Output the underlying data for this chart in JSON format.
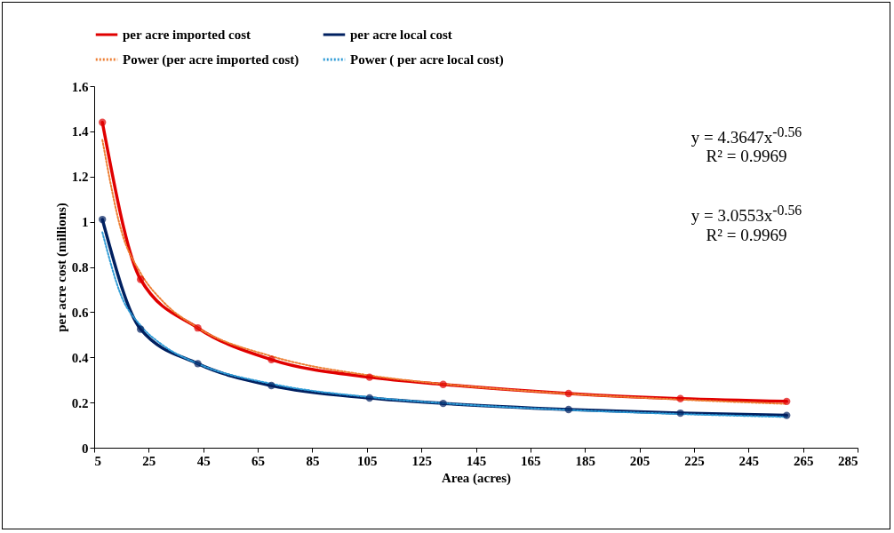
{
  "chart_data": {
    "type": "line",
    "xlabel": "Area  (acres)",
    "ylabel": "per acre cost (millions)",
    "xlim": [
      5,
      285
    ],
    "xticks": [
      5,
      25,
      45,
      65,
      85,
      105,
      125,
      145,
      165,
      185,
      205,
      225,
      245,
      265,
      285
    ],
    "ylim": [
      0,
      1.6
    ],
    "yticks": [
      0,
      0.2,
      0.4,
      0.6,
      0.8,
      1,
      1.2,
      1.4,
      1.6
    ],
    "grid": false,
    "legend": "top",
    "series": [
      {
        "name": "per acre imported cost",
        "color": "#e00000",
        "marker": "circle",
        "line_style": "solid",
        "x": [
          8,
          22,
          43,
          70,
          106,
          133,
          179,
          220,
          259
        ],
        "values": [
          1.44,
          0.745,
          0.53,
          0.39,
          0.312,
          0.28,
          0.24,
          0.217,
          0.205
        ]
      },
      {
        "name": "per acre local cost",
        "color": "#002060",
        "marker": "circle",
        "line_style": "solid",
        "x": [
          8,
          22,
          43,
          70,
          106,
          133,
          179,
          220,
          259
        ],
        "values": [
          1.01,
          0.525,
          0.372,
          0.275,
          0.22,
          0.196,
          0.169,
          0.153,
          0.143
        ]
      },
      {
        "name": "Power (per acre imported cost)",
        "color": "#ed7d31",
        "marker": "none",
        "line_style": "dotted",
        "x": [
          8,
          15,
          22,
          30,
          43,
          70,
          106,
          133,
          179,
          220,
          259
        ],
        "values": [
          1.362,
          0.958,
          0.773,
          0.65,
          0.531,
          0.405,
          0.32,
          0.282,
          0.239,
          0.213,
          0.194
        ]
      },
      {
        "name": "Power ( per acre local cost)",
        "color": "#2e9bd6",
        "marker": "none",
        "line_style": "dotted",
        "x": [
          8,
          15,
          22,
          30,
          43,
          70,
          106,
          133,
          179,
          220,
          259
        ],
        "values": [
          0.953,
          0.67,
          0.541,
          0.455,
          0.372,
          0.283,
          0.224,
          0.197,
          0.167,
          0.149,
          0.136
        ]
      }
    ],
    "annotations": [
      "y = 4.3647x$^{-0.56}$",
      "R² = 0.9969",
      "y = 3.0553x$^{-0.56}$",
      "R² = 0.9969"
    ]
  }
}
